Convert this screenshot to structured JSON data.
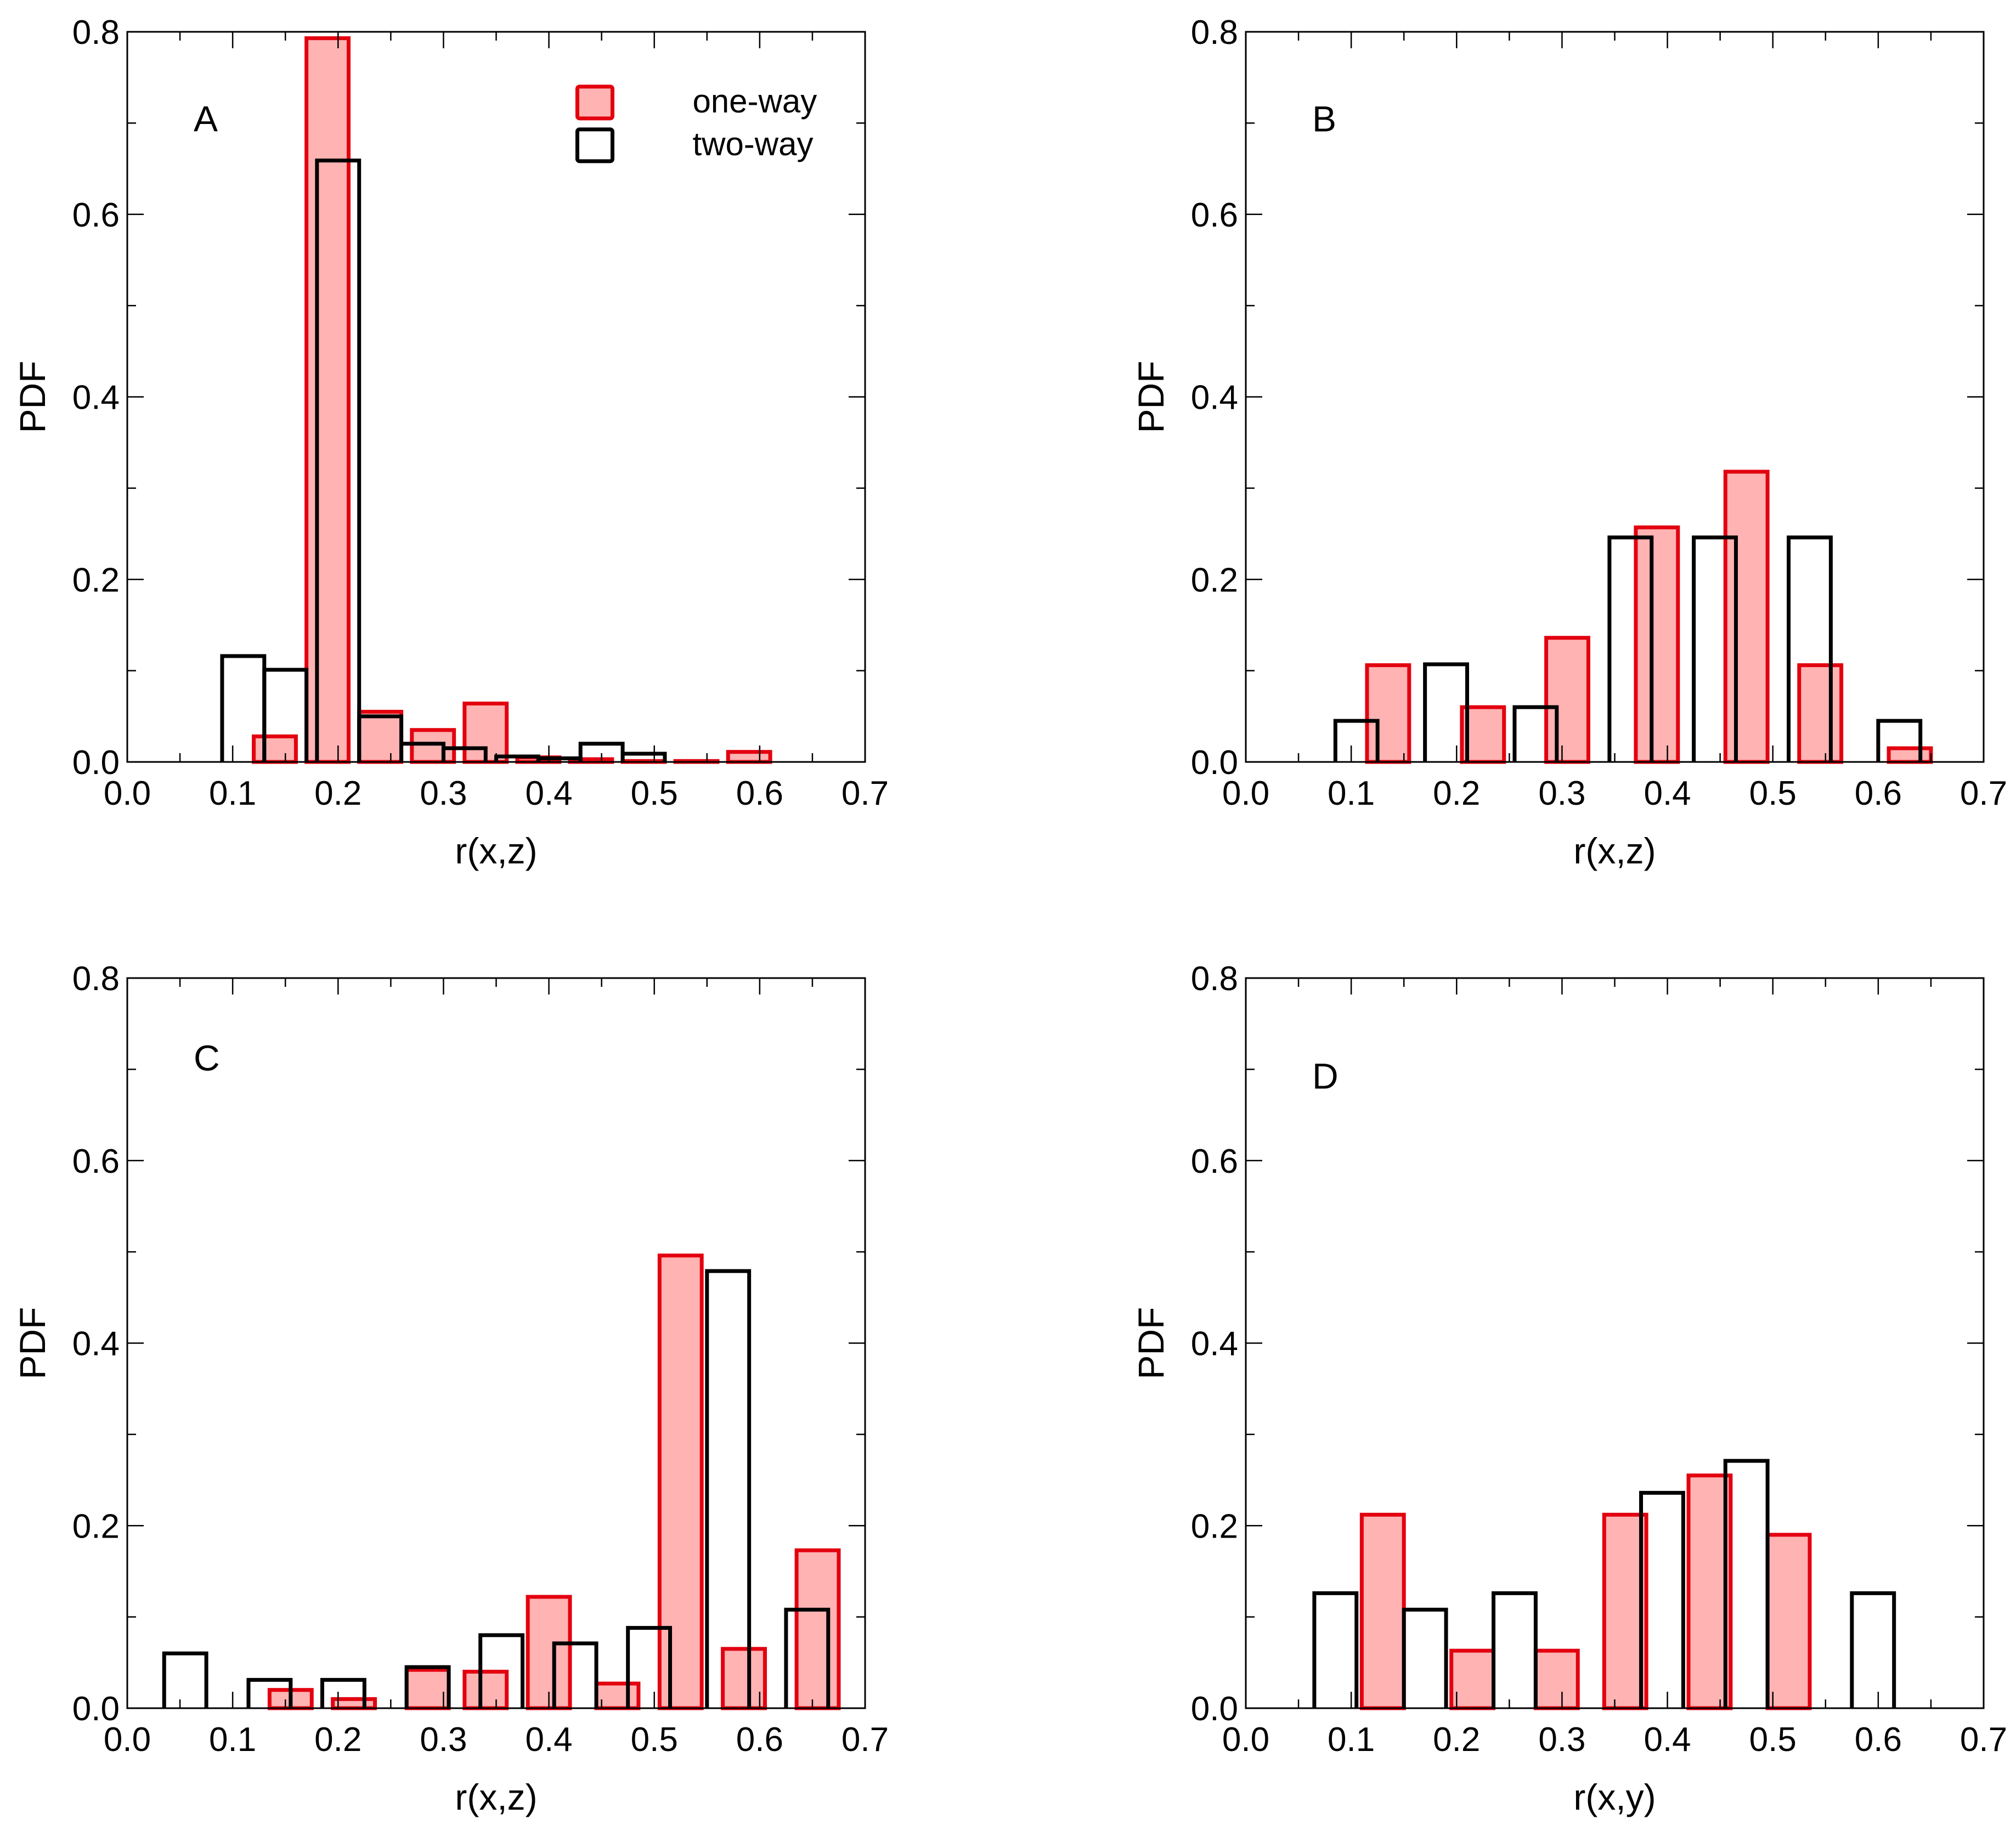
{
  "chart_data": [
    {
      "type": "bar",
      "panel_label": "A",
      "xlabel": "r(x,z)",
      "ylabel": "PDF",
      "xlim": [
        0.0,
        0.7
      ],
      "ylim": [
        0.0,
        0.8
      ],
      "xticks": [
        "0.0",
        "0.1",
        "0.2",
        "0.3",
        "0.4",
        "0.5",
        "0.6",
        "0.7"
      ],
      "yticks": [
        "0.0",
        "0.2",
        "0.4",
        "0.6",
        "0.8"
      ],
      "bar_width": 0.04,
      "legend": {
        "position": "top-right",
        "entries": [
          "one-way",
          "two-way"
        ]
      },
      "series": [
        {
          "name": "one-way",
          "color": "#e3000f",
          "fill": "#ffb3b3",
          "x": [
            0.14,
            0.19,
            0.24,
            0.29,
            0.34,
            0.39,
            0.44,
            0.49,
            0.54,
            0.59
          ],
          "values": [
            0.028,
            0.793,
            0.055,
            0.035,
            0.064,
            0.005,
            0.003,
            0.001,
            0.001,
            0.011
          ]
        },
        {
          "name": "two-way",
          "color": "#000000",
          "x": [
            0.11,
            0.15,
            0.2,
            0.24,
            0.28,
            0.32,
            0.37,
            0.41,
            0.45,
            0.49
          ],
          "values": [
            0.116,
            0.101,
            0.659,
            0.05,
            0.02,
            0.015,
            0.006,
            0.004,
            0.02,
            0.009
          ]
        }
      ]
    },
    {
      "type": "bar",
      "panel_label": "B",
      "xlabel": "r(x,z)",
      "ylabel": "PDF",
      "xlim": [
        0.0,
        0.7
      ],
      "ylim": [
        0.0,
        0.8
      ],
      "xticks": [
        "0.0",
        "0.1",
        "0.2",
        "0.3",
        "0.4",
        "0.5",
        "0.6",
        "0.7"
      ],
      "yticks": [
        "0.0",
        "0.2",
        "0.4",
        "0.6",
        "0.8"
      ],
      "bar_width": 0.04,
      "series": [
        {
          "name": "one-way",
          "color": "#e3000f",
          "fill": "#ffb3b3",
          "x": [
            0.135,
            0.225,
            0.305,
            0.39,
            0.475,
            0.545,
            0.63
          ],
          "values": [
            0.106,
            0.06,
            0.136,
            0.257,
            0.318,
            0.106,
            0.015
          ]
        },
        {
          "name": "two-way",
          "color": "#000000",
          "x": [
            0.105,
            0.19,
            0.275,
            0.365,
            0.445,
            0.535,
            0.62
          ],
          "values": [
            0.045,
            0.107,
            0.06,
            0.246,
            0.246,
            0.246,
            0.045
          ]
        }
      ]
    },
    {
      "type": "bar",
      "panel_label": "C",
      "xlabel": "r(x,z)",
      "ylabel": "PDF",
      "xlim": [
        0.0,
        0.7
      ],
      "ylim": [
        0.0,
        0.8
      ],
      "xticks": [
        "0.0",
        "0.1",
        "0.2",
        "0.3",
        "0.4",
        "0.5",
        "0.6",
        "0.7"
      ],
      "yticks": [
        "0.0",
        "0.2",
        "0.4",
        "0.6",
        "0.8"
      ],
      "bar_width": 0.04,
      "series": [
        {
          "name": "one-way",
          "color": "#e3000f",
          "fill": "#ffb3b3",
          "x": [
            0.155,
            0.215,
            0.285,
            0.34,
            0.4,
            0.465,
            0.525,
            0.585,
            0.655
          ],
          "values": [
            0.02,
            0.01,
            0.042,
            0.04,
            0.122,
            0.027,
            0.496,
            0.065,
            0.173
          ]
        },
        {
          "name": "two-way",
          "color": "#000000",
          "x": [
            0.055,
            0.135,
            0.205,
            0.285,
            0.355,
            0.425,
            0.495,
            0.57,
            0.645
          ],
          "values": [
            0.06,
            0.031,
            0.031,
            0.045,
            0.08,
            0.071,
            0.088,
            0.479,
            0.108
          ]
        }
      ]
    },
    {
      "type": "bar",
      "panel_label": "D",
      "xlabel": "r(x,y)",
      "ylabel": "PDF",
      "xlim": [
        0.0,
        0.7
      ],
      "ylim": [
        0.0,
        0.8
      ],
      "xticks": [
        "0.0",
        "0.1",
        "0.2",
        "0.3",
        "0.4",
        "0.5",
        "0.6",
        "0.7"
      ],
      "yticks": [
        "0.0",
        "0.2",
        "0.4",
        "0.6",
        "0.8"
      ],
      "bar_width": 0.04,
      "series": [
        {
          "name": "one-way",
          "color": "#e3000f",
          "fill": "#ffb3b3",
          "x": [
            0.13,
            0.215,
            0.295,
            0.36,
            0.44,
            0.515
          ],
          "values": [
            0.212,
            0.063,
            0.063,
            0.212,
            0.255,
            0.19
          ]
        },
        {
          "name": "two-way",
          "color": "#000000",
          "x": [
            0.085,
            0.17,
            0.255,
            0.395,
            0.475,
            0.595
          ],
          "values": [
            0.126,
            0.108,
            0.126,
            0.236,
            0.271,
            0.126
          ]
        }
      ]
    }
  ]
}
